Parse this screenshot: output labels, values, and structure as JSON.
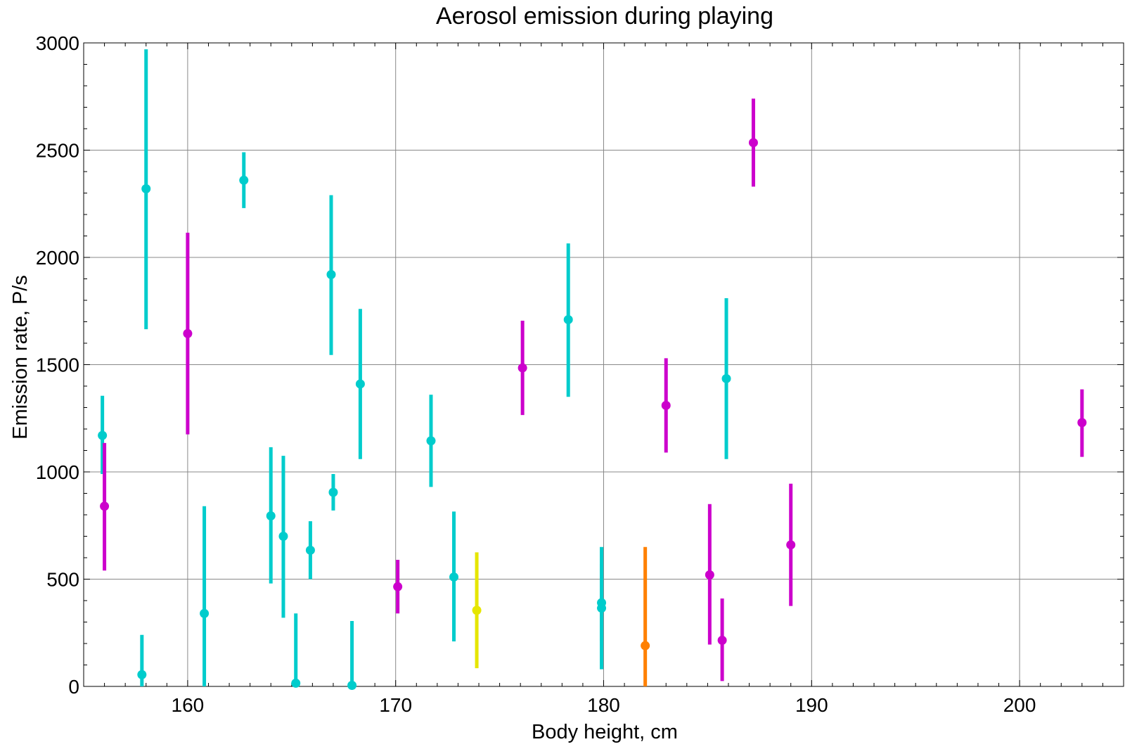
{
  "chart_data": {
    "type": "scatter",
    "title": "Aerosol emission during playing",
    "xlabel": "Body height,  cm",
    "ylabel": "Emission rate,  P/s",
    "xlim": [
      155,
      205
    ],
    "ylim": [
      0,
      3000
    ],
    "x_ticks": [
      {
        "value": 160,
        "label": "160"
      },
      {
        "value": 170,
        "label": "170"
      },
      {
        "value": 180,
        "label": "180"
      },
      {
        "value": 190,
        "label": "190"
      },
      {
        "value": 200,
        "label": "200"
      }
    ],
    "y_ticks": [
      {
        "value": 0,
        "label": "0"
      },
      {
        "value": 500,
        "label": "500"
      },
      {
        "value": 1000,
        "label": "1000"
      },
      {
        "value": 1500,
        "label": "1500"
      },
      {
        "value": 2000,
        "label": "2000"
      },
      {
        "value": 2500,
        "label": "2500"
      },
      {
        "value": 3000,
        "label": "3000"
      }
    ],
    "grid": true,
    "error_bars": true,
    "series": [
      {
        "color": "#00cccc",
        "points": [
          {
            "x": 155.9,
            "y": 1170,
            "lo": 990,
            "hi": 1355
          },
          {
            "x": 157.8,
            "y": 55,
            "lo": 0,
            "hi": 240
          },
          {
            "x": 158.0,
            "y": 2320,
            "lo": 1665,
            "hi": 2970
          },
          {
            "x": 160.8,
            "y": 340,
            "lo": 0,
            "hi": 840
          },
          {
            "x": 162.7,
            "y": 2360,
            "lo": 2230,
            "hi": 2490
          },
          {
            "x": 164.0,
            "y": 795,
            "lo": 480,
            "hi": 1115
          },
          {
            "x": 164.6,
            "y": 700,
            "lo": 320,
            "hi": 1075
          },
          {
            "x": 165.2,
            "y": 15,
            "lo": 0,
            "hi": 340
          },
          {
            "x": 165.9,
            "y": 635,
            "lo": 500,
            "hi": 770
          },
          {
            "x": 166.9,
            "y": 1920,
            "lo": 1545,
            "hi": 2290
          },
          {
            "x": 167.0,
            "y": 905,
            "lo": 820,
            "hi": 990
          },
          {
            "x": 167.9,
            "y": 5,
            "lo": 0,
            "hi": 305
          },
          {
            "x": 168.3,
            "y": 1410,
            "lo": 1060,
            "hi": 1760
          },
          {
            "x": 171.7,
            "y": 1145,
            "lo": 930,
            "hi": 1360
          },
          {
            "x": 172.8,
            "y": 510,
            "lo": 210,
            "hi": 815
          },
          {
            "x": 178.3,
            "y": 1710,
            "lo": 1350,
            "hi": 2065
          },
          {
            "x": 179.9,
            "y": 390,
            "lo": 210,
            "hi": 570
          },
          {
            "x": 179.9,
            "y": 365,
            "lo": 80,
            "hi": 650
          },
          {
            "x": 185.9,
            "y": 1435,
            "lo": 1060,
            "hi": 1810
          }
        ]
      },
      {
        "color": "#cc00cc",
        "points": [
          {
            "x": 156.0,
            "y": 840,
            "lo": 540,
            "hi": 1135
          },
          {
            "x": 160.0,
            "y": 1645,
            "lo": 1175,
            "hi": 2115
          },
          {
            "x": 170.1,
            "y": 465,
            "lo": 340,
            "hi": 590
          },
          {
            "x": 176.1,
            "y": 1485,
            "lo": 1265,
            "hi": 1705
          },
          {
            "x": 183.0,
            "y": 1310,
            "lo": 1090,
            "hi": 1530
          },
          {
            "x": 185.1,
            "y": 520,
            "lo": 195,
            "hi": 850
          },
          {
            "x": 185.7,
            "y": 215,
            "lo": 25,
            "hi": 410
          },
          {
            "x": 187.2,
            "y": 2535,
            "lo": 2330,
            "hi": 2740
          },
          {
            "x": 189.0,
            "y": 660,
            "lo": 375,
            "hi": 945
          },
          {
            "x": 203.0,
            "y": 1230,
            "lo": 1070,
            "hi": 1385
          }
        ]
      },
      {
        "color": "#e6e600",
        "points": [
          {
            "x": 173.9,
            "y": 355,
            "lo": 85,
            "hi": 625
          }
        ]
      },
      {
        "color": "#ff8000",
        "points": [
          {
            "x": 182.0,
            "y": 190,
            "lo": 0,
            "hi": 650
          }
        ]
      }
    ]
  }
}
